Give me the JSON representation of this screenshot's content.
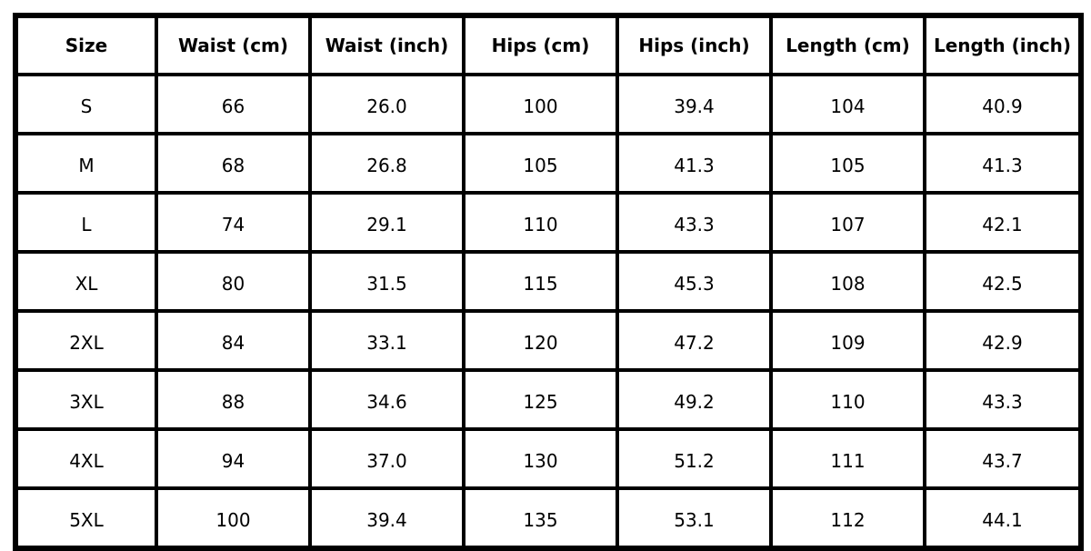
{
  "table": {
    "header": [
      "Size",
      "Waist (cm)",
      "Waist (inch)",
      "Hips (cm)",
      "Hips (inch)",
      "Length (cm)",
      "Length (inch)"
    ],
    "rows": [
      [
        "S",
        "66",
        "26.0",
        "100",
        "39.4",
        "104",
        "40.9"
      ],
      [
        "M",
        "68",
        "26.8",
        "105",
        "41.3",
        "105",
        "41.3"
      ],
      [
        "L",
        "74",
        "29.1",
        "110",
        "43.3",
        "107",
        "42.1"
      ],
      [
        "XL",
        "80",
        "31.5",
        "115",
        "45.3",
        "108",
        "42.5"
      ],
      [
        "2XL",
        "84",
        "33.1",
        "120",
        "47.2",
        "109",
        "42.9"
      ],
      [
        "3XL",
        "88",
        "34.6",
        "125",
        "49.2",
        "110",
        "43.3"
      ],
      [
        "4XL",
        "94",
        "37.0",
        "130",
        "51.2",
        "111",
        "43.7"
      ],
      [
        "5XL",
        "100",
        "39.4",
        "135",
        "53.1",
        "112",
        "44.1"
      ]
    ]
  }
}
